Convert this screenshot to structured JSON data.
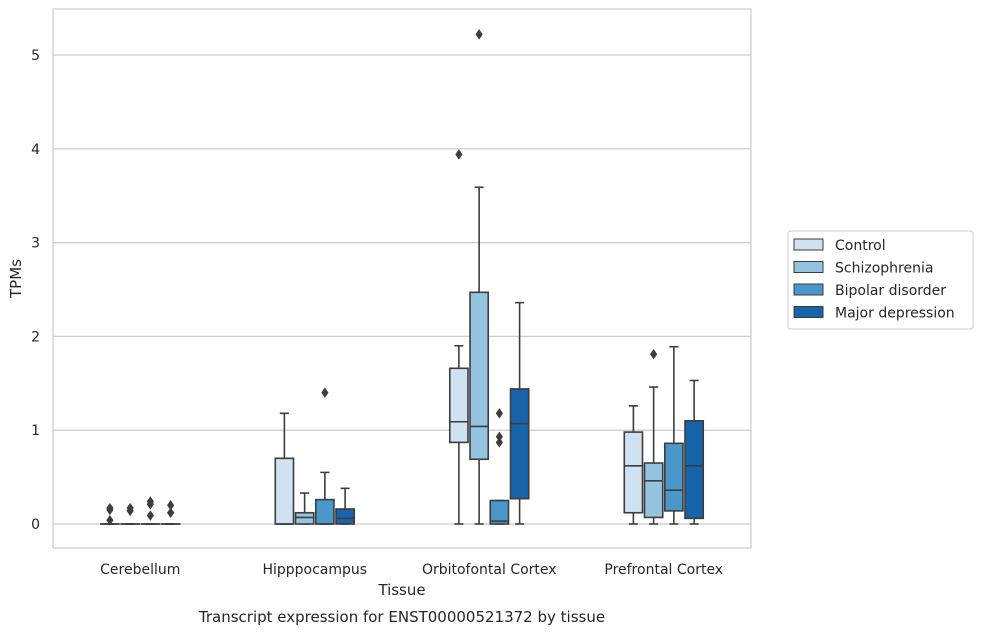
{
  "chart_data": {
    "type": "box",
    "title": "",
    "caption": "Transcript expression for ENST00000521372 by tissue",
    "xlabel": "Tissue",
    "ylabel": "TPMs",
    "ylim": [
      -0.25,
      5.5
    ],
    "yticks": [
      0,
      1,
      2,
      3,
      4,
      5
    ],
    "grid": "horizontal",
    "legend_position": "right",
    "categories": [
      "Cerebellum",
      "Hipppocampus",
      "Orbitofontal Cortex",
      "Prefrontal Cortex"
    ],
    "series": [
      {
        "name": "Control",
        "color": "#d0e1f2",
        "boxes": [
          {
            "whislo": 0,
            "q1": 0,
            "med": 0,
            "q3": 0,
            "whishi": 0,
            "fliers": [
              0.04,
              0.15,
              0.17
            ]
          },
          {
            "whislo": 0,
            "q1": 0,
            "med": 0,
            "q3": 0.7,
            "whishi": 1.18,
            "fliers": []
          },
          {
            "whislo": 0,
            "q1": 0.87,
            "med": 1.09,
            "q3": 1.66,
            "whishi": 1.9,
            "fliers": [
              3.94
            ]
          },
          {
            "whislo": 0,
            "q1": 0.12,
            "med": 0.62,
            "q3": 0.98,
            "whishi": 1.26,
            "fliers": []
          }
        ]
      },
      {
        "name": "Schizophrenia",
        "color": "#94c4df",
        "boxes": [
          {
            "whislo": 0,
            "q1": 0,
            "med": 0,
            "q3": 0,
            "whishi": 0,
            "fliers": [
              0.14,
              0.17
            ]
          },
          {
            "whislo": 0,
            "q1": 0,
            "med": 0.07,
            "q3": 0.12,
            "whishi": 0.33,
            "fliers": []
          },
          {
            "whislo": 0,
            "q1": 0.69,
            "med": 1.04,
            "q3": 2.47,
            "whishi": 3.59,
            "fliers": [
              5.22
            ]
          },
          {
            "whislo": 0,
            "q1": 0.07,
            "med": 0.46,
            "q3": 0.65,
            "whishi": 1.46,
            "fliers": [
              1.81
            ]
          }
        ]
      },
      {
        "name": "Bipolar disorder",
        "color": "#4a98c9",
        "boxes": [
          {
            "whislo": 0,
            "q1": 0,
            "med": 0,
            "q3": 0,
            "whishi": 0,
            "fliers": [
              0.09,
              0.21,
              0.24
            ]
          },
          {
            "whislo": 0,
            "q1": 0,
            "med": 0,
            "q3": 0.26,
            "whishi": 0.55,
            "fliers": [
              1.4
            ]
          },
          {
            "whislo": 0,
            "q1": 0,
            "med": 0.03,
            "q3": 0.25,
            "whishi": 0.25,
            "fliers": [
              0.87,
              0.93,
              1.18
            ]
          },
          {
            "whislo": 0,
            "q1": 0.14,
            "med": 0.36,
            "q3": 0.86,
            "whishi": 1.89,
            "fliers": []
          }
        ]
      },
      {
        "name": "Major depression",
        "color": "#1764ab",
        "boxes": [
          {
            "whislo": 0,
            "q1": 0,
            "med": 0,
            "q3": 0,
            "whishi": 0,
            "fliers": [
              0.12,
              0.2
            ]
          },
          {
            "whislo": 0,
            "q1": 0,
            "med": 0.06,
            "q3": 0.16,
            "whishi": 0.38,
            "fliers": []
          },
          {
            "whislo": 0,
            "q1": 0.27,
            "med": 1.07,
            "q3": 1.44,
            "whishi": 2.36,
            "fliers": []
          },
          {
            "whislo": 0,
            "q1": 0.06,
            "med": 0.62,
            "q3": 1.1,
            "whishi": 1.53,
            "fliers": []
          }
        ]
      }
    ]
  }
}
